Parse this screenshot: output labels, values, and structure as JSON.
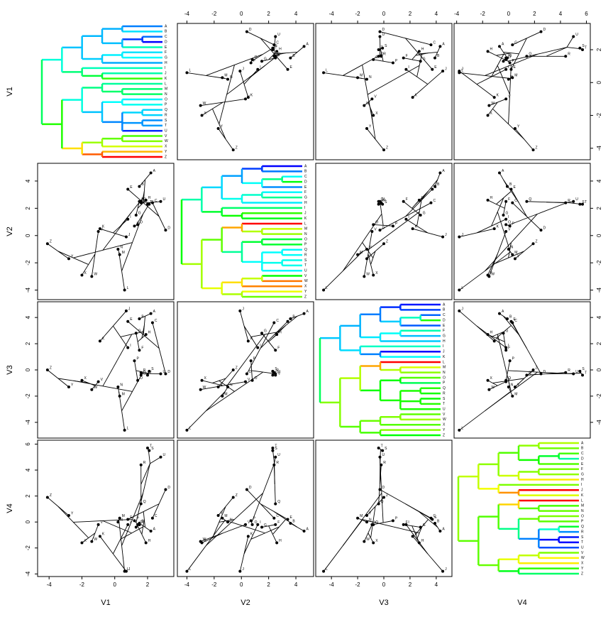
{
  "chart_data": {
    "type": "phylomorphospace-matrix",
    "taxa": [
      "A",
      "B",
      "C",
      "D",
      "E",
      "F",
      "G",
      "H",
      "I",
      "J",
      "K",
      "L",
      "M",
      "N",
      "O",
      "P",
      "Q",
      "R",
      "S",
      "T",
      "U",
      "V",
      "W",
      "X",
      "Y",
      "Z"
    ],
    "tree": [
      [
        [
          [
            [
              0,
              1
            ],
            [
              [
                2,
                3
              ],
              4
            ]
          ],
          [
            [
              5,
              6
            ],
            7
          ]
        ],
        [
          8,
          [
            9,
            10
          ]
        ]
      ],
      [
        [
          [
            11,
            [
              12,
              13
            ]
          ],
          [
            [
              14,
              15
            ],
            [
              [
                16,
                17
              ],
              [
                18,
                19
              ],
              20
            ]
          ]
        ],
        [
          [
            [
              21,
              22
            ],
            23
          ],
          [
            24,
            25
          ]
        ]
      ]
    ],
    "colormap": [
      "#ff0000",
      "#ffff00",
      "#00ff00",
      "#00ffff",
      "#0000ff"
    ],
    "series": [
      {
        "name": "V1",
        "lim": [
          -4.7,
          3.6
        ],
        "ticks": [
          -4,
          -2,
          0,
          2
        ],
        "values": [
          2.2,
          1.5,
          2.3,
          3.1,
          0.8,
          1.5,
          1.3,
          1.9,
          0.8,
          0.7,
          -0.9,
          0.6,
          0.3,
          0.2,
          1.4,
          1.2,
          1.6,
          1.6,
          2.1,
          2.0,
          2.8,
          -1.0,
          -1.4,
          -2.0,
          -2.8,
          -4.1
        ]
      },
      {
        "name": "V2",
        "lim": [
          -4.7,
          5.3
        ],
        "ticks": [
          -4,
          -2,
          0,
          2,
          4
        ],
        "values": [
          4.6,
          3.6,
          2.4,
          0.4,
          3.4,
          2.5,
          1.5,
          2.6,
          1.2,
          -0.1,
          0.5,
          -4.0,
          -1.4,
          -1.0,
          0.8,
          0.7,
          2.5,
          2.4,
          2.3,
          2.3,
          2.5,
          0.3,
          -3.0,
          -2.9,
          -1.7,
          -0.6
        ]
      },
      {
        "name": "V3",
        "lim": [
          -5.2,
          5.2
        ],
        "ticks": [
          -4,
          -2,
          0,
          2,
          4
        ],
        "values": [
          4.3,
          3.9,
          3.6,
          -0.3,
          3.7,
          1.5,
          2.8,
          2.7,
          1.7,
          4.5,
          2.2,
          -4.6,
          -2.0,
          -1.3,
          -0.8,
          0.7,
          -0.4,
          -0.2,
          -0.1,
          -0.4,
          -0.3,
          -0.9,
          -1.5,
          -0.8,
          -1.3,
          0.0
        ]
      },
      {
        "name": "V4",
        "lim": [
          -4.2,
          6.3
        ],
        "ticks": [
          -4,
          -2,
          0,
          2,
          4,
          6
        ],
        "values": [
          -0.7,
          -0.1,
          0.3,
          2.5,
          0.2,
          -0.2,
          -0.4,
          -1.6,
          -0.2,
          -3.8,
          -1.1,
          -3.8,
          0.3,
          0.0,
          -0.2,
          0.1,
          1.4,
          4.4,
          5.5,
          5.7,
          5.0,
          -0.2,
          -1.5,
          -1.6,
          0.5,
          1.9
        ]
      }
    ]
  }
}
